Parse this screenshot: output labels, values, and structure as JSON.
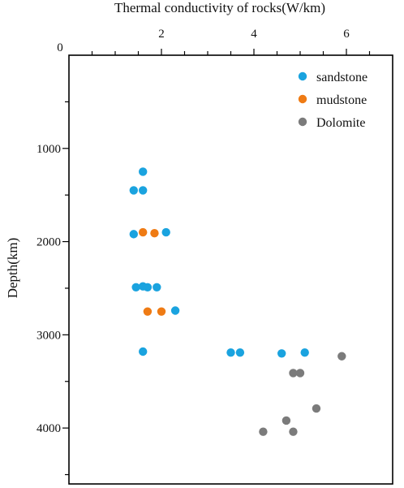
{
  "chart_data": {
    "type": "scatter",
    "xlabel": "Thermal conductivity of rocks(W/km)",
    "ylabel": "Depth(km)",
    "x_axis_position": "top",
    "y_axis_inverted": true,
    "xlim": [
      0,
      7
    ],
    "ylim": [
      0,
      4600
    ],
    "x_ticks": [
      2,
      4,
      6
    ],
    "x_tick_labels": [
      "2",
      "4",
      "6"
    ],
    "y_ticks": [
      1000,
      2000,
      3000,
      4000
    ],
    "y_tick_labels": [
      "1000",
      "2000",
      "3000",
      "4000"
    ],
    "origin_label": "0",
    "grid": false,
    "legend_position": "top-right",
    "series": [
      {
        "name": "sandstone",
        "color": "#1aa3df",
        "points": [
          [
            1.6,
            1250
          ],
          [
            1.4,
            1450
          ],
          [
            1.6,
            1450
          ],
          [
            1.4,
            1920
          ],
          [
            2.1,
            1900
          ],
          [
            1.45,
            2490
          ],
          [
            1.6,
            2480
          ],
          [
            1.7,
            2490
          ],
          [
            1.9,
            2490
          ],
          [
            2.3,
            2740
          ],
          [
            1.6,
            3180
          ],
          [
            3.5,
            3190
          ],
          [
            3.7,
            3190
          ],
          [
            4.6,
            3200
          ],
          [
            5.1,
            3190
          ]
        ]
      },
      {
        "name": "mudstone",
        "color": "#ef7b14",
        "points": [
          [
            1.6,
            1900
          ],
          [
            1.85,
            1910
          ],
          [
            1.7,
            2750
          ],
          [
            2.0,
            2750
          ]
        ]
      },
      {
        "name": "Dolomite",
        "color": "#7b7b7b",
        "points": [
          [
            5.9,
            3230
          ],
          [
            4.85,
            3410
          ],
          [
            5.0,
            3410
          ],
          [
            5.35,
            3790
          ],
          [
            4.7,
            3920
          ],
          [
            4.2,
            4040
          ],
          [
            4.85,
            4040
          ]
        ]
      }
    ]
  }
}
